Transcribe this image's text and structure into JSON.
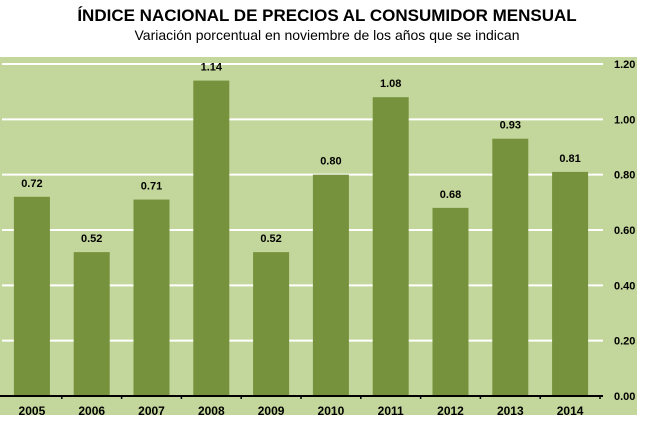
{
  "chart_data": {
    "type": "bar",
    "title": "ÍNDICE NACIONAL DE PRECIOS AL CONSUMIDOR MENSUAL",
    "subtitle": "Variación porcentual en noviembre de los años que se indican",
    "categories": [
      "2005",
      "2006",
      "2007",
      "2008",
      "2009",
      "2010",
      "2011",
      "2012",
      "2013",
      "2014"
    ],
    "values": [
      0.72,
      0.52,
      0.71,
      1.14,
      0.52,
      0.8,
      1.08,
      0.68,
      0.93,
      0.81
    ],
    "data_labels": [
      "0.72",
      "0.52",
      "0.71",
      "1.14",
      "0.52",
      "0.80",
      "1.08",
      "0.68",
      "0.93",
      "0.81"
    ],
    "yticks": [
      "0.00",
      "0.20",
      "0.40",
      "0.60",
      "0.80",
      "1.00",
      "1.20"
    ],
    "ylim": [
      0,
      1.2
    ],
    "y_axis_position": "right",
    "grid": true,
    "colors": {
      "bar": "#76923c",
      "background": "#c3d69b",
      "grid": "#ffffff"
    }
  }
}
